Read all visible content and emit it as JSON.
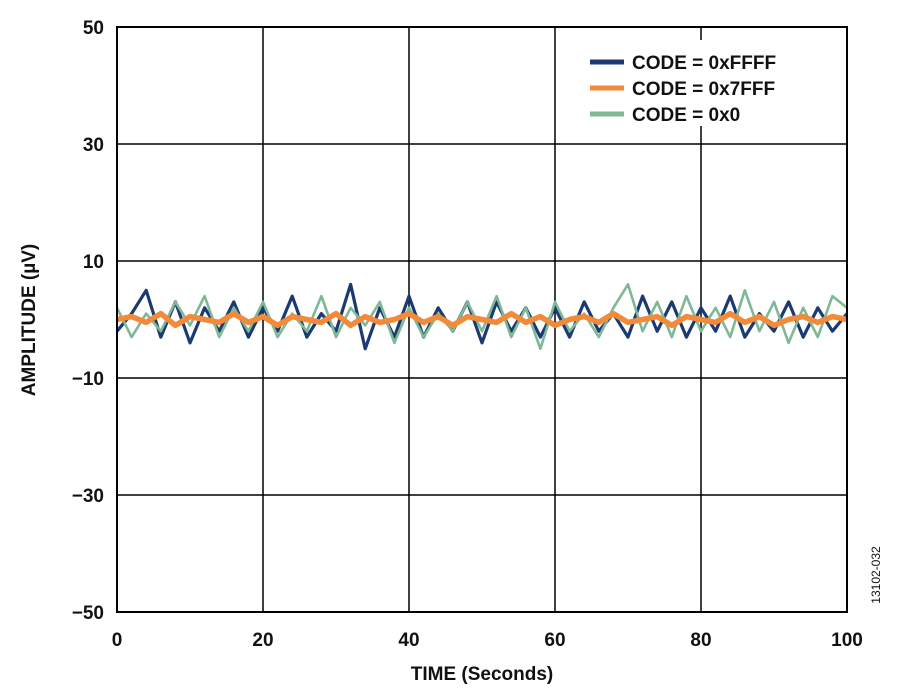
{
  "chart_data": {
    "type": "line",
    "title": "",
    "xlabel": "TIME (Seconds)",
    "ylabel": "AMPLITUDE (µV)",
    "xlim": [
      0,
      100
    ],
    "ylim": [
      -50,
      50
    ],
    "x_ticks": [
      0,
      20,
      40,
      60,
      80,
      100
    ],
    "y_ticks": [
      -50,
      -30,
      -10,
      10,
      30,
      50
    ],
    "x_tick_labels": [
      "0",
      "20",
      "40",
      "60",
      "80",
      "100"
    ],
    "y_tick_labels": [
      "−50",
      "−30",
      "−10",
      "10",
      "30",
      "50"
    ],
    "grid": true,
    "legend_position": "top-right",
    "series": [
      {
        "name": "CODE = 0xFFFF",
        "color": "#1b3a72",
        "x": [
          0,
          2,
          4,
          6,
          8,
          10,
          12,
          14,
          16,
          18,
          20,
          22,
          24,
          26,
          28,
          30,
          32,
          34,
          36,
          38,
          40,
          42,
          44,
          46,
          48,
          50,
          52,
          54,
          56,
          58,
          60,
          62,
          64,
          66,
          68,
          70,
          72,
          74,
          76,
          78,
          80,
          82,
          84,
          86,
          88,
          90,
          92,
          94,
          96,
          98,
          100
        ],
        "y": [
          -2,
          1,
          5,
          -3,
          3,
          -4,
          2,
          -2,
          3,
          -3,
          2,
          -2,
          4,
          -3,
          1,
          -2,
          6,
          -5,
          2,
          -3,
          4,
          -3,
          2,
          -2,
          3,
          -4,
          3,
          -2,
          2,
          -3,
          2,
          -3,
          3,
          -2,
          1,
          -3,
          4,
          -2,
          3,
          -3,
          2,
          -2,
          4,
          -3,
          1,
          -2,
          3,
          -3,
          2,
          -2,
          1
        ]
      },
      {
        "name": "CODE = 0x7FFF",
        "color": "#f28a3a",
        "x": [
          0,
          2,
          4,
          6,
          8,
          10,
          12,
          14,
          16,
          18,
          20,
          22,
          24,
          26,
          28,
          30,
          32,
          34,
          36,
          38,
          40,
          42,
          44,
          46,
          48,
          50,
          52,
          54,
          56,
          58,
          60,
          62,
          64,
          66,
          68,
          70,
          72,
          74,
          76,
          78,
          80,
          82,
          84,
          86,
          88,
          90,
          92,
          94,
          96,
          98,
          100
        ],
        "y": [
          0,
          0.5,
          -0.5,
          1,
          -1,
          0.5,
          0,
          -0.5,
          1,
          -0.5,
          0.5,
          -1,
          0.5,
          0,
          -0.5,
          1,
          -1,
          0.5,
          -0.5,
          0,
          1,
          -0.5,
          0.5,
          -1,
          0.5,
          0,
          -0.5,
          1,
          -0.5,
          0.5,
          -1,
          0,
          0.5,
          -0.5,
          1,
          -0.5,
          0,
          0.5,
          -1,
          0.5,
          0,
          -0.5,
          1,
          -0.5,
          0.5,
          -1,
          0,
          0.5,
          -0.5,
          0.5,
          0
        ]
      },
      {
        "name": "CODE = 0x0",
        "color": "#7fb896",
        "x": [
          0,
          2,
          4,
          6,
          8,
          10,
          12,
          14,
          16,
          18,
          20,
          22,
          24,
          26,
          28,
          30,
          32,
          34,
          36,
          38,
          40,
          42,
          44,
          46,
          48,
          50,
          52,
          54,
          56,
          58,
          60,
          62,
          64,
          66,
          68,
          70,
          72,
          74,
          76,
          78,
          80,
          82,
          84,
          86,
          88,
          90,
          92,
          94,
          96,
          98,
          100
        ],
        "y": [
          2,
          -3,
          1,
          -2,
          3,
          -1,
          4,
          -3,
          2,
          -2,
          3,
          -3,
          1,
          -2,
          4,
          -3,
          2,
          -1,
          3,
          -4,
          2,
          -3,
          1,
          -2,
          3,
          -2,
          4,
          -3,
          2,
          -5,
          3,
          -2,
          1,
          -3,
          2,
          6,
          -2,
          3,
          -3,
          4,
          -2,
          2,
          -3,
          5,
          -2,
          3,
          -4,
          2,
          -3,
          4,
          2
        ]
      }
    ]
  },
  "annotation": {
    "figure_id": "13102-032"
  }
}
